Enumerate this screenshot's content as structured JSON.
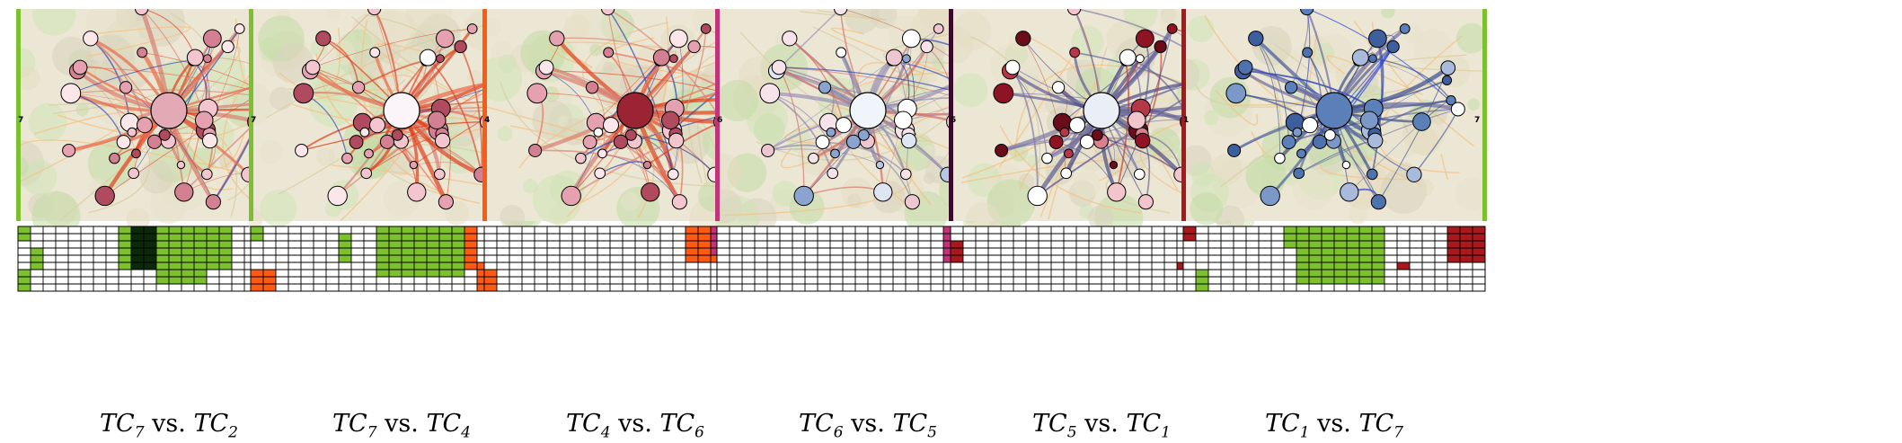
{
  "panels": [
    {
      "left": {
        "name": "TC",
        "sub": "7"
      },
      "vs": "vs.",
      "right": {
        "name": "TC",
        "sub": "2"
      },
      "left_color": "#7cc12d",
      "right_color": "#0b2a0b",
      "node_palette": "pink",
      "center_color": "#e3aab6",
      "left_tick": "7",
      "right_tick": "2"
    },
    {
      "left": {
        "name": "TC",
        "sub": "7"
      },
      "vs": "vs.",
      "right": {
        "name": "TC",
        "sub": "4"
      },
      "left_color": "#7cc12d",
      "right_color": "#ff5a14",
      "node_palette": "pink",
      "center_color": "#fbf4f8",
      "left_tick": "7",
      "right_tick": "4"
    },
    {
      "left": {
        "name": "TC",
        "sub": "4"
      },
      "vs": "vs.",
      "right": {
        "name": "TC",
        "sub": "6"
      },
      "left_color": "#ff5a14",
      "right_color": "#c2337a",
      "node_palette": "pink",
      "center_color": "#9a2433",
      "left_tick": "4",
      "right_tick": "6"
    },
    {
      "left": {
        "name": "TC",
        "sub": "6"
      },
      "vs": "vs.",
      "right": {
        "name": "TC",
        "sub": "5"
      },
      "left_color": "#c2337a",
      "right_color": "#3a0a2c",
      "node_palette": "pinkblue",
      "center_color": "#f0f4fb",
      "left_tick": "6",
      "right_tick": "5"
    },
    {
      "left": {
        "name": "TC",
        "sub": "5"
      },
      "vs": "vs.",
      "right": {
        "name": "TC",
        "sub": "1"
      },
      "left_color": "#3a0a2c",
      "right_color": "#a8181c",
      "node_palette": "red",
      "center_color": "#e9eef7",
      "left_tick": "5",
      "right_tick": "1"
    },
    {
      "left": {
        "name": "TC",
        "sub": "1"
      },
      "vs": "vs.",
      "right": {
        "name": "TC",
        "sub": "7"
      },
      "left_color": "#a8181c",
      "right_color": "#7cc12d",
      "node_palette": "blue",
      "center_color": "#5b7fb8",
      "left_tick": "1",
      "right_tick": "7"
    }
  ]
}
